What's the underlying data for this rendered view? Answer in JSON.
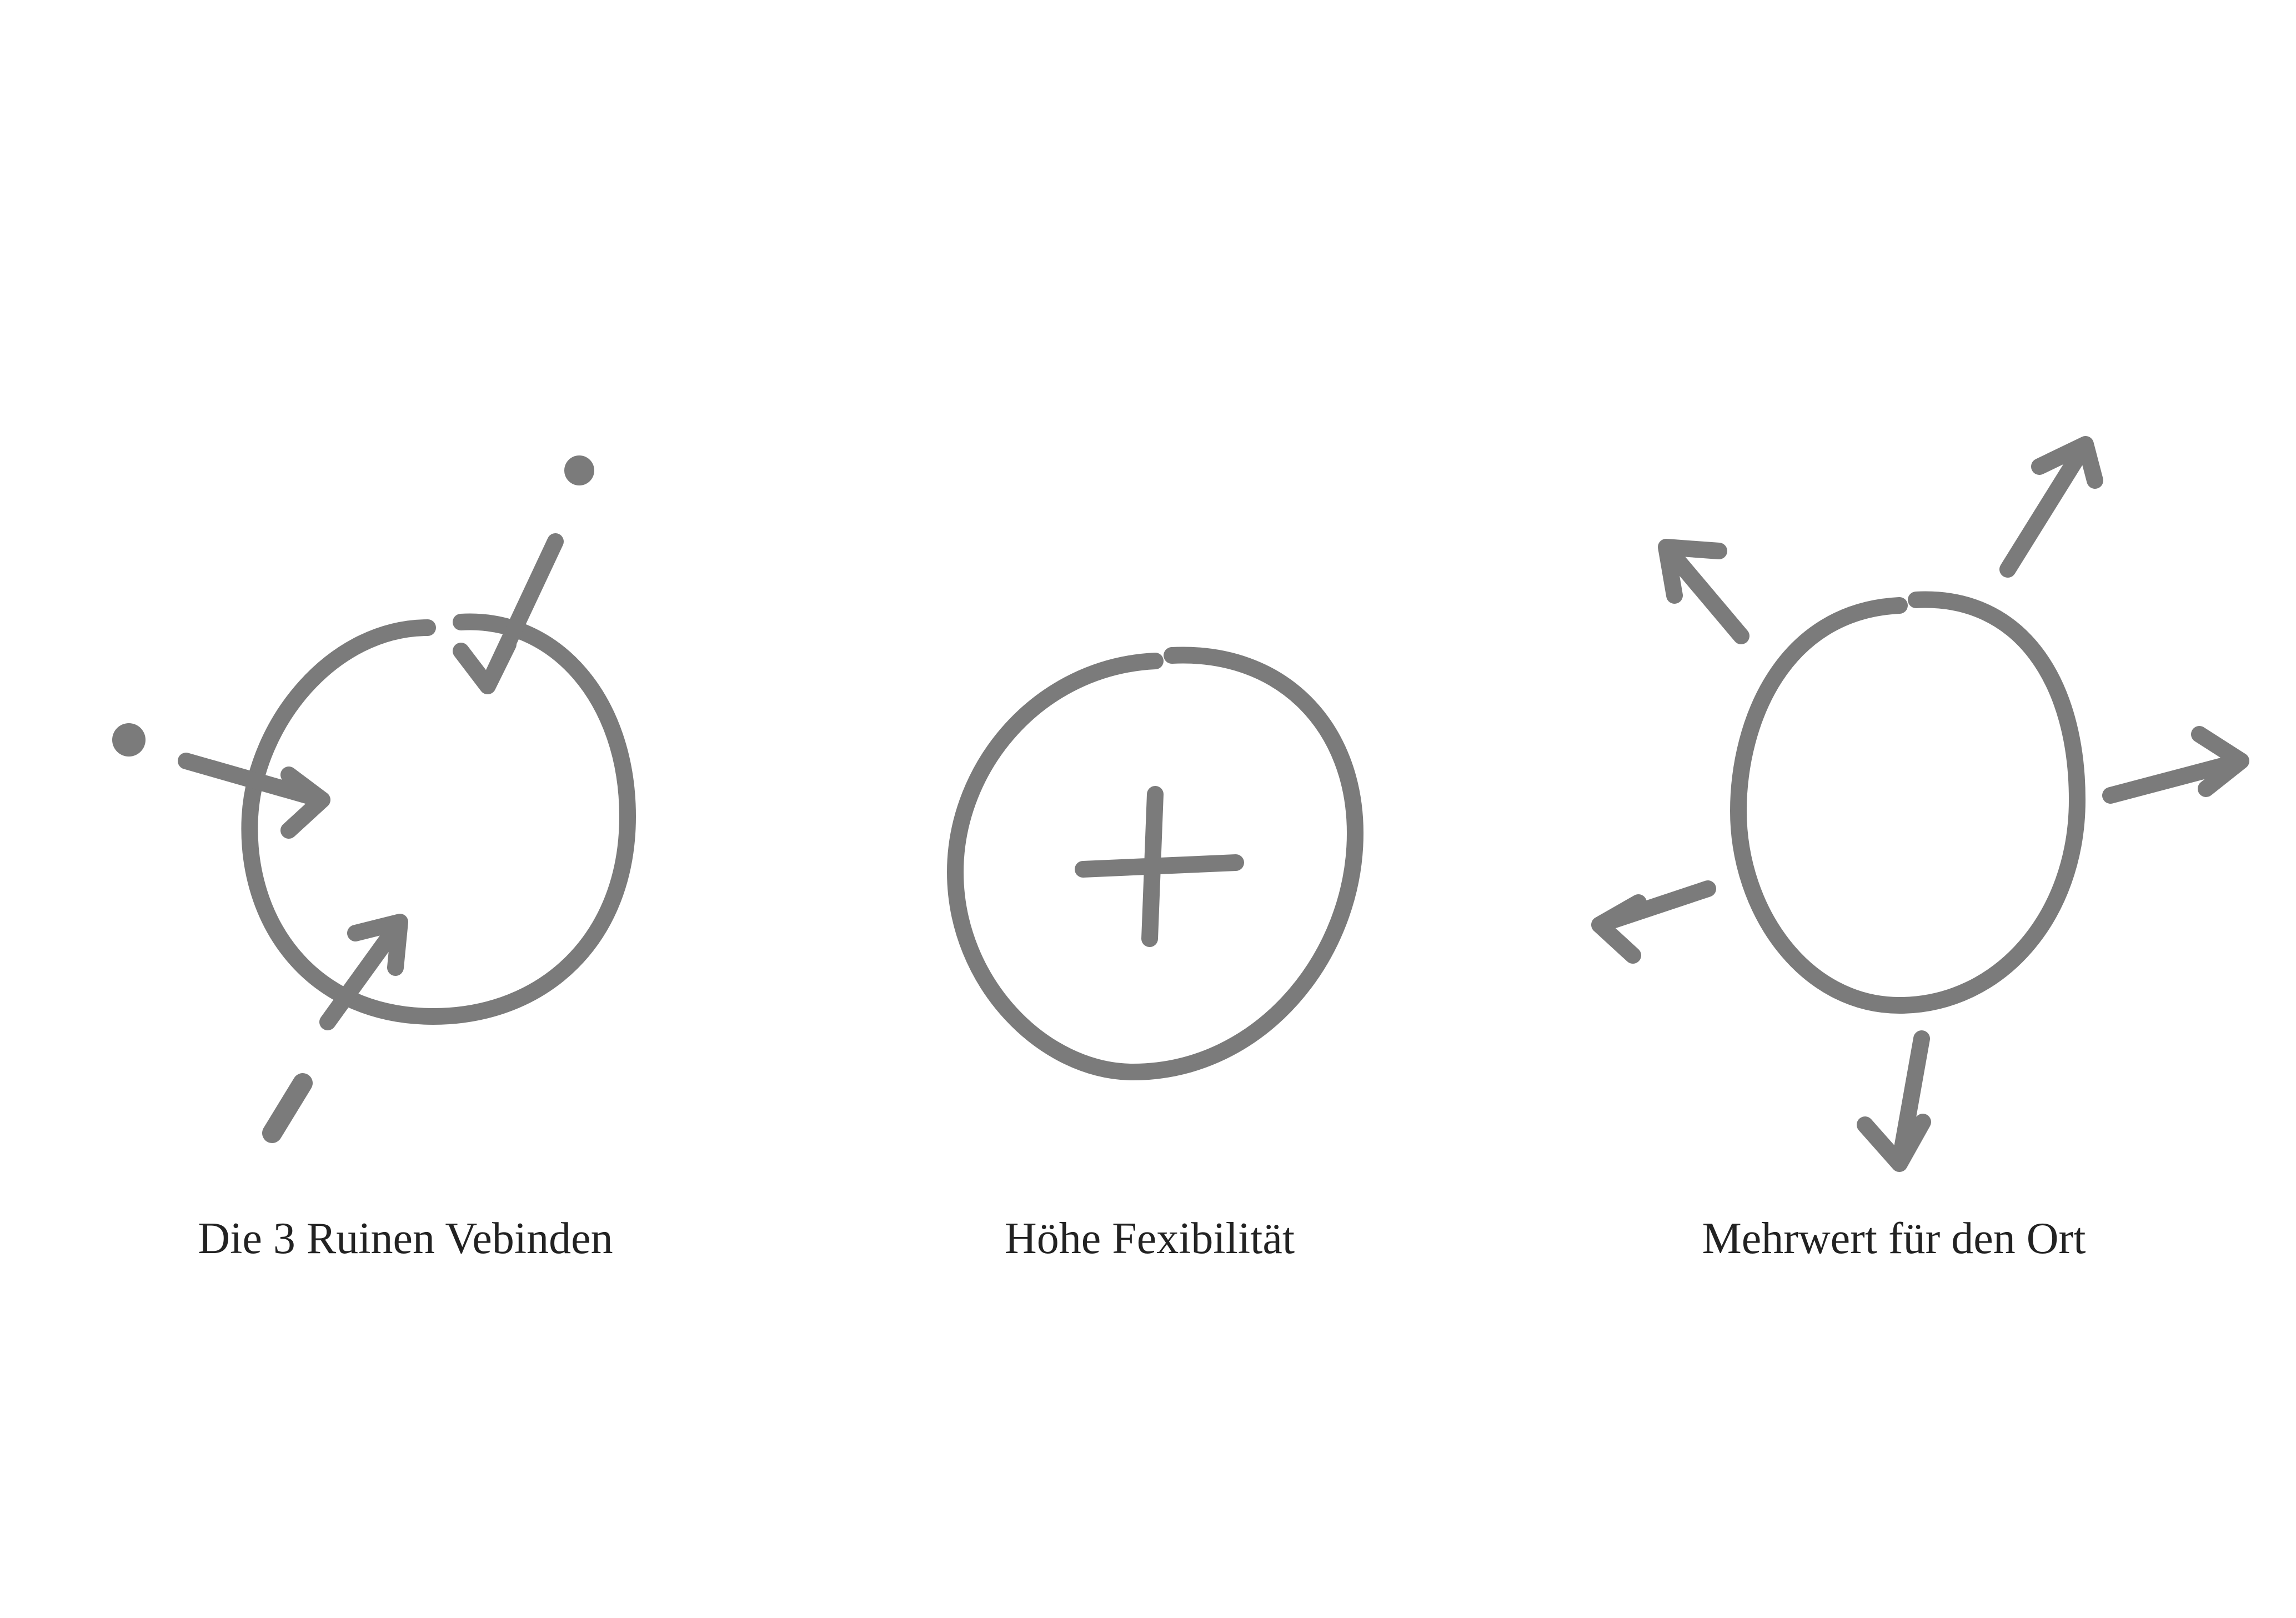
{
  "concepts": [
    {
      "caption": "Die 3 Ruinen Vebinden",
      "symbol": "circle-with-inward-arrows"
    },
    {
      "caption": "Höhe Fexibilität",
      "symbol": "circle-with-plus"
    },
    {
      "caption": "Mehrwert für den Ort",
      "symbol": "circle-with-outward-arrows"
    }
  ],
  "colors": {
    "ink": "#7b7b7b",
    "text": "#222222",
    "background": "#ffffff"
  }
}
